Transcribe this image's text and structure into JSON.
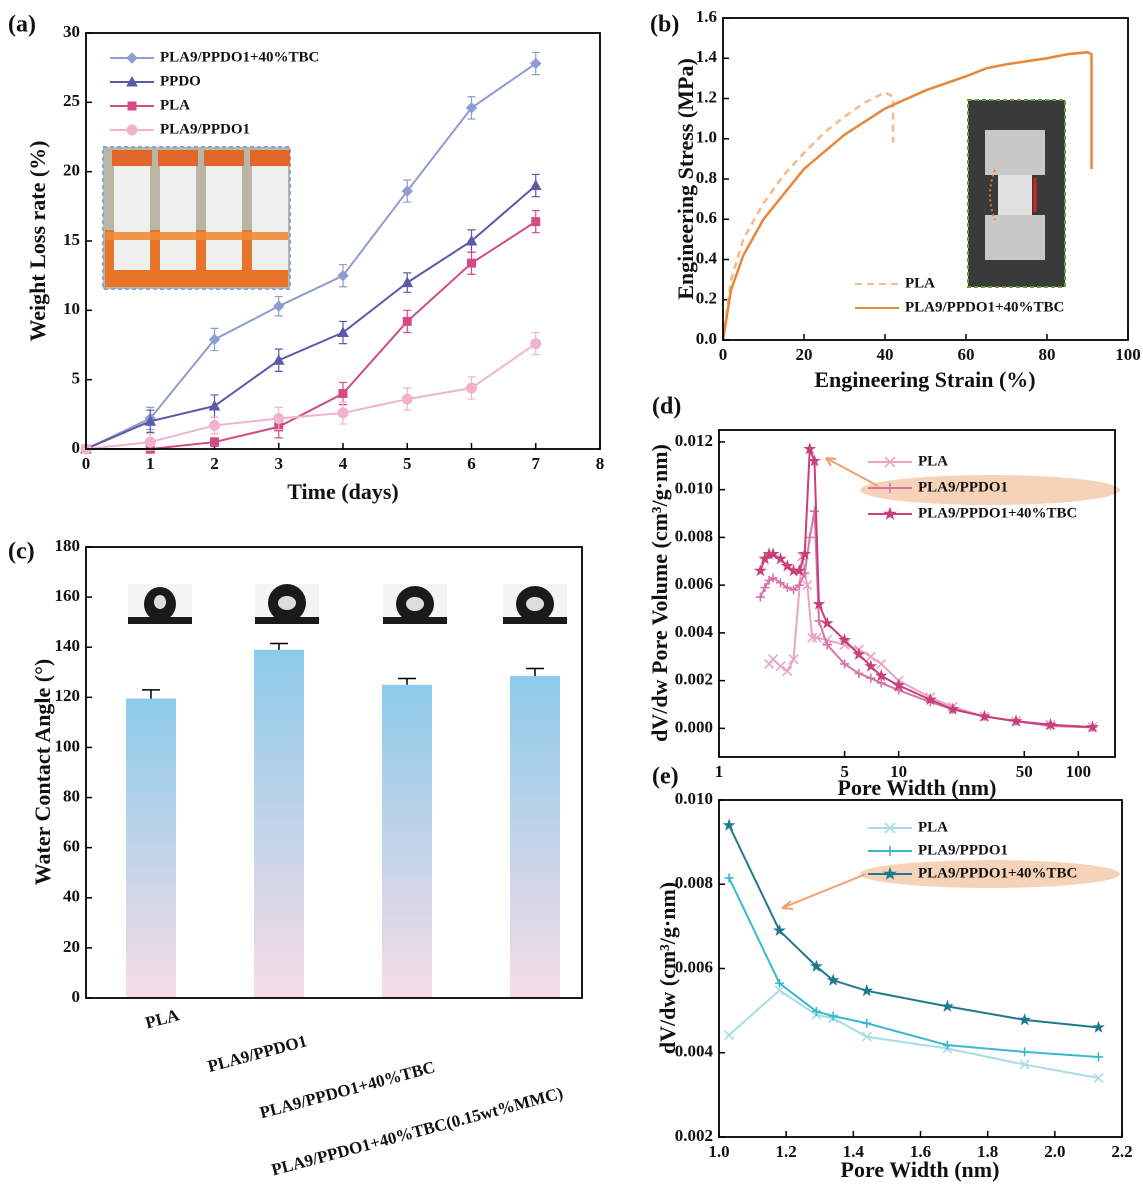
{
  "chart_data": [
    {
      "type": "line",
      "label": "(a)",
      "xlabel": "Time (days)",
      "ylabel": "Weight Loss rate (%)",
      "x": [
        0,
        1,
        2,
        3,
        4,
        5,
        6,
        7
      ],
      "xlim": [
        0,
        8
      ],
      "xticks": [
        0,
        1,
        2,
        3,
        4,
        5,
        6,
        7,
        8
      ],
      "ylim": [
        0,
        30
      ],
      "yticks": [
        0,
        5,
        10,
        15,
        20,
        25,
        30
      ],
      "series": [
        {
          "name": "PLA9/PPDO1+40%TBC",
          "color": "#8e9ccf",
          "marker": "diamond",
          "values": [
            0,
            2.2,
            7.9,
            10.3,
            12.5,
            18.6,
            24.6,
            27.8
          ],
          "errors": [
            0,
            0.8,
            0.8,
            0.7,
            0.8,
            0.8,
            0.8,
            0.8
          ]
        },
        {
          "name": "PPDO",
          "color": "#5b5aa8",
          "marker": "triangle",
          "values": [
            0,
            2.0,
            3.1,
            6.4,
            8.4,
            12.0,
            15.0,
            19.0
          ],
          "errors": [
            0,
            0.8,
            0.8,
            0.8,
            0.8,
            0.7,
            0.8,
            0.8
          ]
        },
        {
          "name": "PLA",
          "color": "#d44a86",
          "marker": "square",
          "values": [
            0,
            0,
            0.5,
            1.6,
            4.0,
            9.2,
            13.4,
            16.4
          ],
          "errors": [
            0,
            0.3,
            0.3,
            0.8,
            0.8,
            0.8,
            0.8,
            0.8
          ]
        },
        {
          "name": "PLA9/PPDO1",
          "color": "#f2b2cd",
          "marker": "circle",
          "values": [
            0,
            0.5,
            1.7,
            2.2,
            2.6,
            3.6,
            4.4,
            7.6
          ],
          "errors": [
            0,
            0.6,
            0.6,
            0.8,
            0.8,
            0.8,
            0.8,
            0.8
          ]
        }
      ]
    },
    {
      "type": "line",
      "label": "(b)",
      "xlabel": "Engineering Strain (%)",
      "ylabel": "Engineering Stress (MPa)",
      "xlim": [
        0,
        100
      ],
      "xticks": [
        0,
        20,
        40,
        60,
        80,
        100
      ],
      "ylim": [
        0,
        1.6
      ],
      "yticks": [
        {
          "value": 0,
          "label": "0.0"
        },
        0.2,
        0.4,
        0.6,
        0.8,
        {
          "value": 1,
          "label": "1.0"
        },
        1.2,
        1.4,
        1.6
      ],
      "series": [
        {
          "name": "PLA",
          "color": "#f5b98a",
          "linestyle": "dashed",
          "x": [
            0,
            2,
            5,
            10,
            15,
            20,
            25,
            30,
            35,
            40,
            42,
            42
          ],
          "values": [
            0,
            0.3,
            0.5,
            0.68,
            0.82,
            0.93,
            1.03,
            1.11,
            1.18,
            1.23,
            1.21,
            0.98
          ]
        },
        {
          "name": "PLA9/PPDO1+40%TBC",
          "color": "#e8873a",
          "linestyle": "solid",
          "x": [
            0,
            2,
            5,
            10,
            20,
            30,
            40,
            50,
            60,
            65,
            70,
            80,
            85,
            90,
            91,
            91
          ],
          "values": [
            0,
            0.25,
            0.42,
            0.6,
            0.85,
            1.02,
            1.15,
            1.24,
            1.31,
            1.35,
            1.37,
            1.4,
            1.42,
            1.43,
            1.42,
            0.85
          ]
        }
      ]
    },
    {
      "type": "bar",
      "label": "(c)",
      "ylabel": "Water Contact Angle (°)",
      "categories": [
        "PLA",
        "PLA9/PPDO1",
        "PLA9/PPDO1+40%TBC",
        "PLA9/PPDO1+40%TBC(0.15wt%MMC)"
      ],
      "values": [
        119.5,
        139,
        125,
        128.5
      ],
      "errors": [
        3.5,
        2.5,
        2.5,
        3
      ],
      "gradient": [
        "#8ccbea",
        "#f6dce6"
      ],
      "ylim": [
        0,
        180
      ],
      "yticks": [
        0,
        20,
        40,
        60,
        80,
        100,
        120,
        140,
        160,
        180
      ]
    },
    {
      "type": "line",
      "label": "(d)",
      "xlabel": "Pore Width (nm)",
      "ylabel": "dV/dw Pore Volume (cm³/g·nm)",
      "xscale": "log",
      "xlim": [
        1,
        160
      ],
      "xticks": [
        1,
        5,
        10,
        50,
        100
      ],
      "ylim": [
        -0.0012,
        0.0125
      ],
      "yticks": [
        {
          "value": 0,
          "label": "0.000"
        },
        0.002,
        0.004,
        0.006,
        0.008,
        {
          "value": 0.01,
          "label": "0.010"
        },
        0.012
      ],
      "series": [
        {
          "name": "PLA",
          "color": "#eba3c3",
          "marker": "x",
          "x": [
            1.9,
            2.0,
            2.2,
            2.4,
            2.6,
            2.9,
            3.1,
            3.3,
            3.5,
            4,
            5,
            6,
            7,
            8,
            10,
            15,
            20,
            30,
            45,
            70,
            120
          ],
          "values": [
            0.0027,
            0.0029,
            0.0026,
            0.0024,
            0.0029,
            0.0072,
            0.006,
            0.0038,
            0.0038,
            0.0037,
            0.0035,
            0.0033,
            0.003,
            0.0027,
            0.002,
            0.0013,
            0.0009,
            0.0005,
            0.0003,
            0.00015,
            5e-05
          ]
        },
        {
          "name": "PLA9/PPDO1",
          "color": "#d873a8",
          "marker": "plus",
          "x": [
            1.7,
            1.8,
            1.9,
            2.0,
            2.2,
            2.4,
            2.6,
            2.8,
            3.0,
            3.2,
            3.4,
            3.6,
            4,
            5,
            6,
            7,
            8,
            10,
            15,
            20,
            30,
            45,
            70,
            120
          ],
          "values": [
            0.0055,
            0.0059,
            0.0062,
            0.0063,
            0.0061,
            0.0059,
            0.0058,
            0.006,
            0.0065,
            0.008,
            0.0091,
            0.0045,
            0.0035,
            0.0027,
            0.0023,
            0.0021,
            0.0019,
            0.0016,
            0.0011,
            0.0008,
            0.0005,
            0.0003,
            0.0001,
            4e-05
          ]
        },
        {
          "name": "PLA9/PPDO1+40%TBC",
          "color": "#c8407a",
          "marker": "star",
          "x": [
            1.7,
            1.8,
            1.9,
            2.0,
            2.2,
            2.4,
            2.6,
            2.8,
            3.0,
            3.2,
            3.4,
            3.6,
            4,
            5,
            6,
            7,
            8,
            10,
            15,
            20,
            30,
            45,
            70,
            120
          ],
          "values": [
            0.0066,
            0.0071,
            0.0073,
            0.0073,
            0.0071,
            0.0068,
            0.0066,
            0.0066,
            0.0073,
            0.0117,
            0.0112,
            0.0052,
            0.0044,
            0.0037,
            0.0031,
            0.0026,
            0.0022,
            0.0018,
            0.0012,
            0.0008,
            0.0005,
            0.0003,
            0.00015,
            5e-05
          ]
        }
      ]
    },
    {
      "type": "line",
      "label": "(e)",
      "xlabel": "Pore Width (nm)",
      "ylabel": "dV/dw (cm³/g·nm)",
      "xlim": [
        1,
        2.2
      ],
      "xticks": [
        {
          "value": 1,
          "label": "1.0"
        },
        1.2,
        1.4,
        1.6,
        1.8,
        {
          "value": 2,
          "label": "2.0"
        },
        2.2
      ],
      "ylim": [
        0.002,
        0.01
      ],
      "yticks": [
        0.002,
        0.004,
        0.006,
        0.008,
        {
          "value": 0.01,
          "label": "0.010"
        }
      ],
      "series": [
        {
          "name": "PLA",
          "color": "#a8dce8",
          "marker": "x",
          "x": [
            1.03,
            1.18,
            1.29,
            1.34,
            1.44,
            1.68,
            1.91,
            2.13
          ],
          "values": [
            0.00442,
            0.00548,
            0.0049,
            0.00482,
            0.00438,
            0.0041,
            0.00372,
            0.0034
          ]
        },
        {
          "name": "PLA9/PPDO1",
          "color": "#3ab8d0",
          "marker": "plus",
          "x": [
            1.03,
            1.18,
            1.29,
            1.34,
            1.44,
            1.68,
            1.91,
            2.13
          ],
          "values": [
            0.00815,
            0.00565,
            0.00498,
            0.00487,
            0.0047,
            0.00418,
            0.00402,
            0.0039
          ]
        },
        {
          "name": "PLA9/PPDO1+40%TBC",
          "color": "#1f7a8c",
          "marker": "star",
          "x": [
            1.03,
            1.18,
            1.29,
            1.34,
            1.44,
            1.68,
            1.91,
            2.13
          ],
          "values": [
            0.0094,
            0.0069,
            0.00605,
            0.00572,
            0.00547,
            0.0051,
            0.00478,
            0.0046
          ]
        }
      ]
    }
  ]
}
